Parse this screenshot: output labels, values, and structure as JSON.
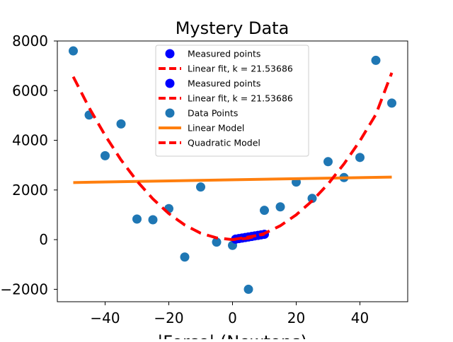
{
  "chart_data": {
    "type": "scatter",
    "title": "Mystery Data",
    "xlabel": "|Force| (Newtons)",
    "ylabel": "",
    "xlim": [
      -55,
      55
    ],
    "ylim": [
      -2500,
      8000
    ],
    "xticks": [
      -40,
      -20,
      0,
      20,
      40
    ],
    "xtick_labels": [
      "−40",
      "−20",
      "0",
      "20",
      "40"
    ],
    "yticks": [
      -2000,
      0,
      2000,
      4000,
      6000,
      8000
    ],
    "ytick_labels": [
      "−2000",
      "0",
      "2000",
      "4000",
      "6000",
      "8000"
    ],
    "grid": false,
    "legend_position": "top-center",
    "legend": [
      {
        "label": "Measured points",
        "kind": "marker",
        "color": "#0000ff"
      },
      {
        "label": "Linear fit, k = 21.53686",
        "kind": "dashed-line",
        "color": "#ff0000"
      },
      {
        "label": "Measured points",
        "kind": "marker",
        "color": "#0000ff"
      },
      {
        "label": "Linear fit, k = 21.53686",
        "kind": "dashed-line",
        "color": "#ff0000"
      },
      {
        "label": "Data Points",
        "kind": "marker",
        "color": "#1f77b4"
      },
      {
        "label": "Linear Model",
        "kind": "line",
        "color": "#ff7f0e"
      },
      {
        "label": "Quadratic Model",
        "kind": "dashed-line",
        "color": "#ff0000"
      }
    ],
    "series": [
      {
        "name": "Data Points",
        "type": "scatter",
        "color": "#1f77b4",
        "x": [
          -50,
          -45,
          -40,
          -35,
          -30,
          -25,
          -20,
          -15,
          -10,
          -5,
          0,
          5,
          10,
          15,
          20,
          25,
          30,
          35,
          40,
          45,
          50
        ],
        "y": [
          7600,
          5020,
          3380,
          4660,
          830,
          800,
          1250,
          -700,
          2120,
          -100,
          -230,
          -2000,
          1180,
          1320,
          2320,
          1660,
          3140,
          2500,
          3310,
          7220,
          5500
        ]
      },
      {
        "name": "Measured points",
        "type": "scatter",
        "color": "#0000ff",
        "x": [
          1,
          2,
          3,
          4,
          5,
          6,
          7,
          8,
          9,
          10
        ],
        "y": [
          22,
          43,
          65,
          86,
          108,
          129,
          151,
          172,
          194,
          215
        ]
      },
      {
        "name": "Linear Model",
        "type": "line",
        "color": "#ff7f0e",
        "x": [
          -50,
          50
        ],
        "y": [
          2300,
          2520
        ]
      },
      {
        "name": "Quadratic Model",
        "type": "line",
        "style": "dashed",
        "color": "#ff0000",
        "x": [
          -50,
          -45,
          -40,
          -35,
          -30,
          -25,
          -20,
          -15,
          -10,
          -5,
          0,
          5,
          10,
          15,
          20,
          25,
          30,
          35,
          40,
          45,
          50
        ],
        "y": [
          6560,
          5310,
          4200,
          3210,
          2360,
          1640,
          1050,
          590,
          260,
          70,
          0,
          60,
          250,
          560,
          1000,
          1560,
          2240,
          3050,
          3980,
          5040,
          6720
        ]
      },
      {
        "name": "Linear fit, k = 21.53686",
        "type": "line",
        "style": "dashed",
        "color": "#ff0000",
        "x": [
          0,
          10
        ],
        "y": [
          0,
          215
        ]
      }
    ]
  }
}
